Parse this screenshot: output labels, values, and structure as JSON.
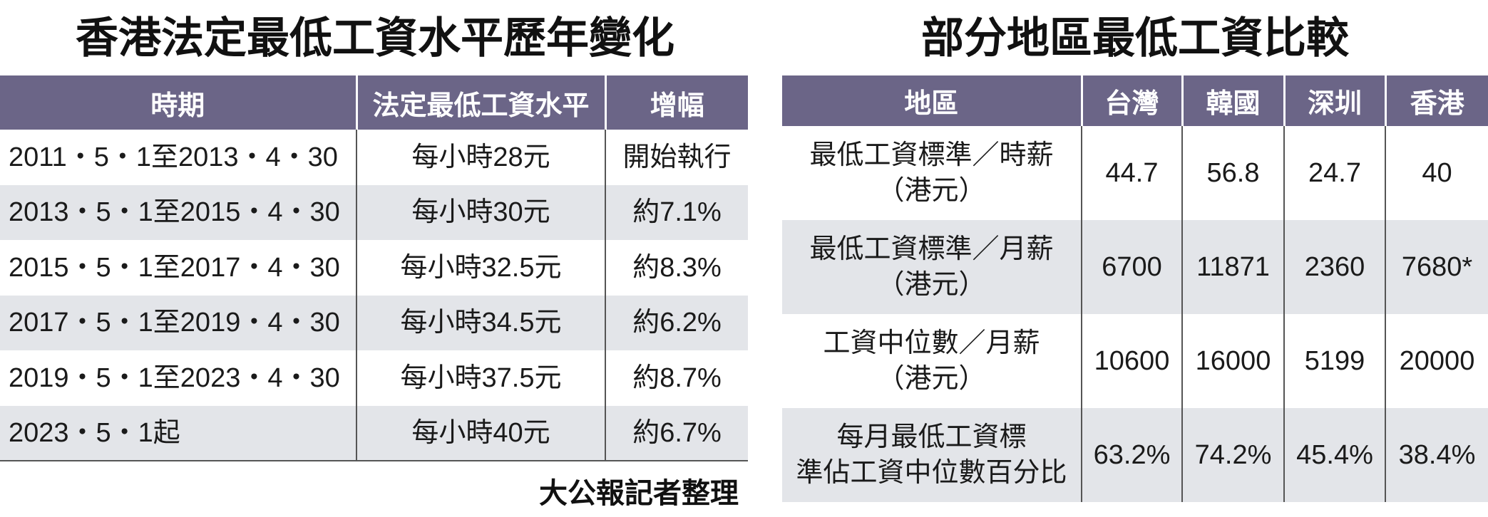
{
  "left": {
    "title": "香港法定最低工資水平歷年變化",
    "header": [
      "時期",
      "法定最低工資水平",
      "增幅"
    ],
    "rows": [
      [
        "2011・5・1至2013・4・30",
        "每小時28元",
        "開始執行"
      ],
      [
        "2013・5・1至2015・4・30",
        "每小時30元",
        "約7.1%"
      ],
      [
        "2015・5・1至2017・4・30",
        "每小時32.5元",
        "約8.3%"
      ],
      [
        "2017・5・1至2019・4・30",
        "每小時34.5元",
        "約6.2%"
      ],
      [
        "2019・5・1至2023・4・30",
        "每小時37.5元",
        "約8.7%"
      ],
      [
        "2023・5・1起",
        "每小時40元",
        "約6.7%"
      ]
    ],
    "note": "大公報記者整理"
  },
  "right": {
    "title": "部分地區最低工資比較",
    "header": [
      "地區",
      "台灣",
      "韓國",
      "深圳",
      "香港"
    ],
    "rows": [
      {
        "label": [
          "最低工資標準／時薪",
          "（港元）"
        ],
        "values": [
          "44.7",
          "56.8",
          "24.7",
          "40"
        ]
      },
      {
        "label": [
          "最低工資標準／月薪",
          "（港元）"
        ],
        "values": [
          "6700",
          "11871",
          "2360",
          "7680*"
        ]
      },
      {
        "label": [
          "工資中位數／月薪",
          "（港元）"
        ],
        "values": [
          "10600",
          "16000",
          "5199",
          "20000"
        ]
      },
      {
        "label": [
          "每月最低工資標",
          "準佔工資中位數百分比"
        ],
        "values": [
          "63.2%",
          "74.2%",
          "45.4%",
          "38.4%"
        ]
      }
    ]
  }
}
